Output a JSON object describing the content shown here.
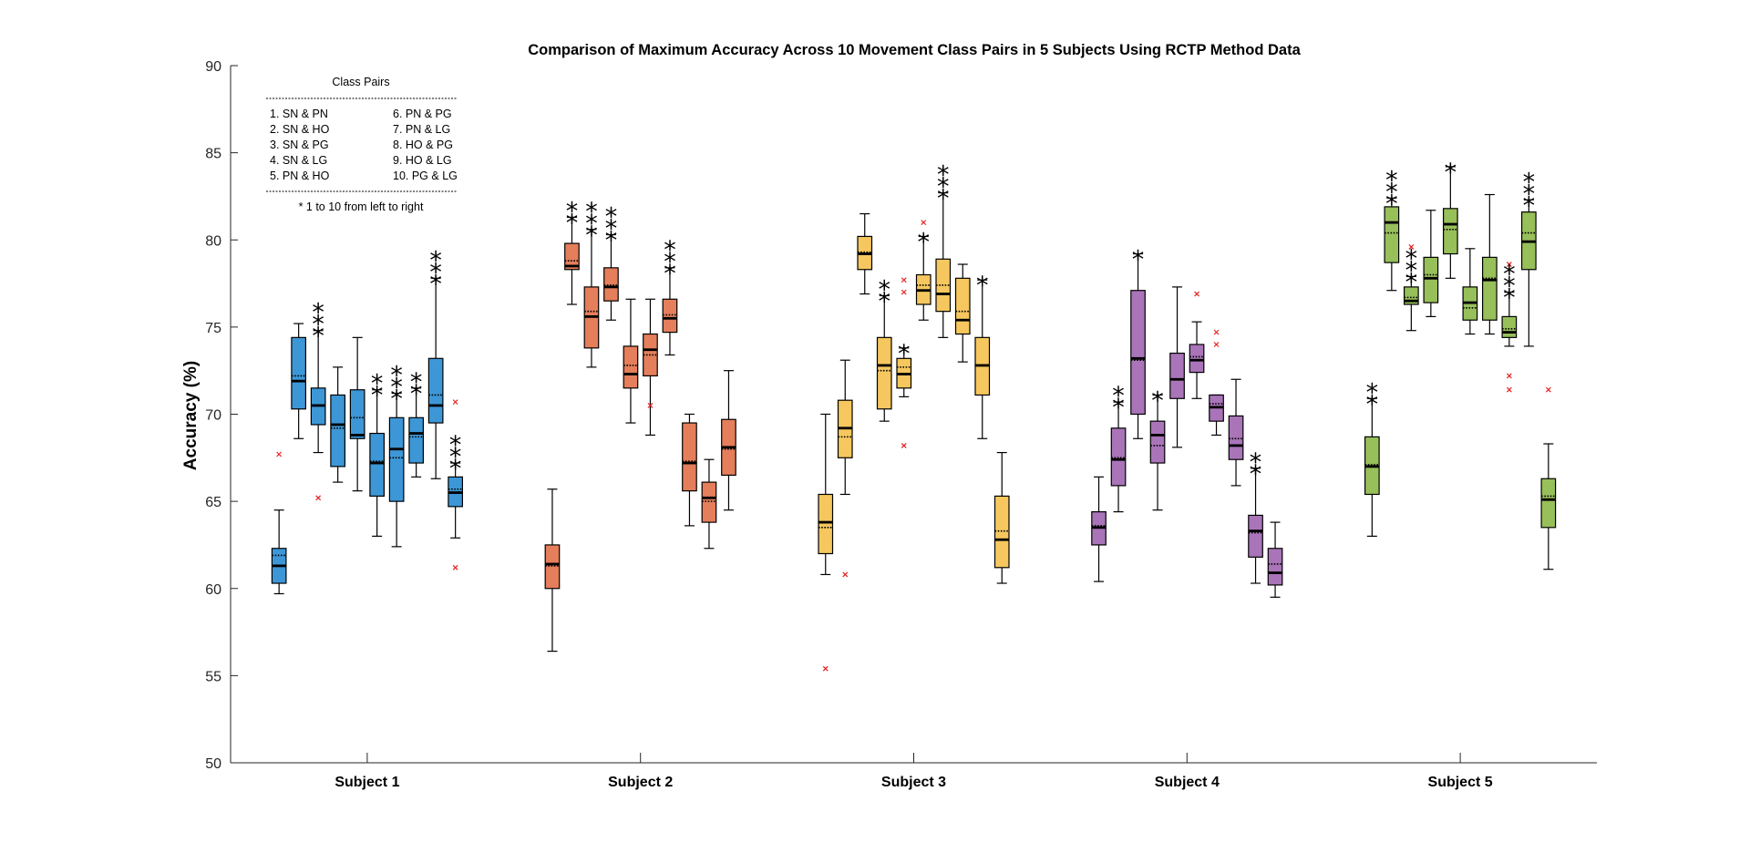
{
  "chart_data": {
    "type": "box",
    "title": "Comparison of Maximum Accuracy Across 10 Movement Class Pairs in 5 Subjects Using RCTP Method Data",
    "ylabel": "Accuracy (%)",
    "xlabel": "",
    "ylim": [
      50,
      90
    ],
    "yticks": [
      50,
      55,
      60,
      65,
      70,
      75,
      80,
      85,
      90
    ],
    "groups": [
      "Subject 1",
      "Subject 2",
      "Subject 3",
      "Subject 4",
      "Subject 5"
    ],
    "colors": [
      "#3d97d6",
      "#e47e5b",
      "#f5c75e",
      "#a974b8",
      "#97bf5a"
    ],
    "legend": {
      "title": "Class Pairs",
      "items": [
        "1. SN & PN",
        "2. SN & HO",
        "3. SN & PG",
        "4. SN & LG",
        "5. PN & HO",
        "6. PN & PG",
        "7. PN & LG",
        "8. HO & PG",
        "9. HO & LG",
        "10. PG & LG"
      ],
      "note": "* 1 to 10 from left to right",
      "placement": "top-left"
    },
    "series": [
      {
        "group": "Subject 1",
        "boxes": [
          {
            "min": 59.7,
            "q1": 60.3,
            "median": 61.3,
            "mean": 61.9,
            "q3": 62.3,
            "max": 64.5,
            "outliers": [
              67.7
            ],
            "stars": ""
          },
          {
            "min": 68.6,
            "q1": 70.3,
            "median": 71.9,
            "mean": 72.2,
            "q3": 74.4,
            "max": 75.2,
            "outliers": [],
            "stars": ""
          },
          {
            "min": 67.8,
            "q1": 69.4,
            "median": 70.5,
            "mean": 70.5,
            "q3": 71.5,
            "max": 74.8,
            "outliers": [
              65.2
            ],
            "stars": "***"
          },
          {
            "min": 66.1,
            "q1": 67.0,
            "median": 69.4,
            "mean": 69.2,
            "q3": 71.1,
            "max": 72.7,
            "outliers": [],
            "stars": ""
          },
          {
            "min": 65.6,
            "q1": 68.6,
            "median": 68.8,
            "mean": 69.8,
            "q3": 71.4,
            "max": 74.4,
            "outliers": [],
            "stars": ""
          },
          {
            "min": 63.0,
            "q1": 65.3,
            "median": 67.2,
            "mean": 67.3,
            "q3": 68.9,
            "max": 71.4,
            "outliers": [],
            "stars": "**"
          },
          {
            "min": 62.4,
            "q1": 65.0,
            "median": 68.0,
            "mean": 67.5,
            "q3": 69.8,
            "max": 71.2,
            "outliers": [],
            "stars": "***"
          },
          {
            "min": 66.4,
            "q1": 67.2,
            "median": 68.9,
            "mean": 68.7,
            "q3": 69.8,
            "max": 71.5,
            "outliers": [],
            "stars": "**"
          },
          {
            "min": 66.3,
            "q1": 69.5,
            "median": 70.5,
            "mean": 71.1,
            "q3": 73.2,
            "max": 77.8,
            "outliers": [],
            "stars": "***"
          },
          {
            "min": 62.9,
            "q1": 64.7,
            "median": 65.5,
            "mean": 65.7,
            "q3": 66.4,
            "max": 67.2,
            "outliers": [
              70.7,
              61.2
            ],
            "stars": "***"
          }
        ]
      },
      {
        "group": "Subject 2",
        "boxes": [
          {
            "min": 56.4,
            "q1": 60.0,
            "median": 61.4,
            "mean": 61.3,
            "q3": 62.5,
            "max": 65.7,
            "outliers": [],
            "stars": ""
          },
          {
            "min": 76.3,
            "q1": 78.3,
            "median": 78.5,
            "mean": 78.8,
            "q3": 79.8,
            "max": 81.3,
            "outliers": [],
            "stars": "**"
          },
          {
            "min": 72.7,
            "q1": 73.8,
            "median": 75.6,
            "mean": 75.9,
            "q3": 77.3,
            "max": 80.6,
            "outliers": [],
            "stars": "***"
          },
          {
            "min": 75.4,
            "q1": 76.5,
            "median": 77.3,
            "mean": 77.4,
            "q3": 78.4,
            "max": 80.3,
            "outliers": [],
            "stars": "***"
          },
          {
            "min": 69.5,
            "q1": 71.5,
            "median": 72.3,
            "mean": 72.8,
            "q3": 73.9,
            "max": 76.6,
            "outliers": [],
            "stars": ""
          },
          {
            "min": 68.8,
            "q1": 72.2,
            "median": 73.7,
            "mean": 73.4,
            "q3": 74.6,
            "max": 76.6,
            "outliers": [
              70.5
            ],
            "stars": ""
          },
          {
            "min": 73.4,
            "q1": 74.7,
            "median": 75.5,
            "mean": 75.7,
            "q3": 76.6,
            "max": 78.4,
            "outliers": [],
            "stars": "***"
          },
          {
            "min": 63.6,
            "q1": 65.6,
            "median": 67.2,
            "mean": 67.3,
            "q3": 69.5,
            "max": 70.0,
            "outliers": [],
            "stars": ""
          },
          {
            "min": 62.3,
            "q1": 63.8,
            "median": 65.2,
            "mean": 65.0,
            "q3": 66.1,
            "max": 67.4,
            "outliers": [],
            "stars": ""
          },
          {
            "min": 64.5,
            "q1": 66.5,
            "median": 68.1,
            "mean": 68.0,
            "q3": 69.7,
            "max": 72.5,
            "outliers": [],
            "stars": ""
          }
        ]
      },
      {
        "group": "Subject 3",
        "boxes": [
          {
            "min": 60.8,
            "q1": 62.0,
            "median": 63.8,
            "mean": 63.5,
            "q3": 65.4,
            "max": 70.0,
            "outliers": [
              55.4
            ],
            "stars": ""
          },
          {
            "min": 65.4,
            "q1": 67.5,
            "median": 69.2,
            "mean": 68.7,
            "q3": 70.8,
            "max": 73.1,
            "outliers": [
              60.8
            ],
            "stars": ""
          },
          {
            "min": 76.9,
            "q1": 78.3,
            "median": 79.2,
            "mean": 79.3,
            "q3": 80.2,
            "max": 81.5,
            "outliers": [],
            "stars": ""
          },
          {
            "min": 69.6,
            "q1": 70.3,
            "median": 72.8,
            "mean": 72.5,
            "q3": 74.4,
            "max": 76.8,
            "outliers": [],
            "stars": "**"
          },
          {
            "min": 71.0,
            "q1": 71.5,
            "median": 72.3,
            "mean": 72.7,
            "q3": 73.2,
            "max": 73.8,
            "outliers": [
              77.7,
              77.0,
              68.2
            ],
            "stars": "*"
          },
          {
            "min": 75.4,
            "q1": 76.3,
            "median": 77.1,
            "mean": 77.4,
            "q3": 78.0,
            "max": 80.2,
            "outliers": [
              81.0
            ],
            "stars": "*"
          },
          {
            "min": 74.4,
            "q1": 75.9,
            "median": 76.9,
            "mean": 77.4,
            "q3": 78.9,
            "max": 82.7,
            "outliers": [],
            "stars": "***"
          },
          {
            "min": 73.0,
            "q1": 74.6,
            "median": 75.4,
            "mean": 75.9,
            "q3": 77.8,
            "max": 78.6,
            "outliers": [],
            "stars": ""
          },
          {
            "min": 68.6,
            "q1": 71.1,
            "median": 72.8,
            "mean": 72.8,
            "q3": 74.4,
            "max": 77.7,
            "outliers": [],
            "stars": "*"
          },
          {
            "min": 60.3,
            "q1": 61.2,
            "median": 62.8,
            "mean": 63.3,
            "q3": 65.3,
            "max": 67.8,
            "outliers": [],
            "stars": ""
          }
        ]
      },
      {
        "group": "Subject 4",
        "boxes": [
          {
            "min": 60.4,
            "q1": 62.5,
            "median": 63.5,
            "mean": 63.6,
            "q3": 64.4,
            "max": 66.4,
            "outliers": [],
            "stars": ""
          },
          {
            "min": 64.4,
            "q1": 65.9,
            "median": 67.4,
            "mean": 67.5,
            "q3": 69.2,
            "max": 70.7,
            "outliers": [],
            "stars": "**"
          },
          {
            "min": 68.6,
            "q1": 70.0,
            "median": 73.2,
            "mean": 73.1,
            "q3": 77.1,
            "max": 79.2,
            "outliers": [],
            "stars": "*"
          },
          {
            "min": 64.5,
            "q1": 67.2,
            "median": 68.8,
            "mean": 68.2,
            "q3": 69.6,
            "max": 71.1,
            "outliers": [],
            "stars": "*"
          },
          {
            "min": 68.1,
            "q1": 70.9,
            "median": 72.0,
            "mean": 72.0,
            "q3": 73.5,
            "max": 77.3,
            "outliers": [],
            "stars": ""
          },
          {
            "min": 70.9,
            "q1": 72.4,
            "median": 73.1,
            "mean": 73.3,
            "q3": 74.0,
            "max": 75.3,
            "outliers": [
              76.9
            ],
            "stars": ""
          },
          {
            "min": 68.8,
            "q1": 69.6,
            "median": 70.4,
            "mean": 70.6,
            "q3": 71.1,
            "max": 71.1,
            "outliers": [
              74.7,
              74.0
            ],
            "stars": ""
          },
          {
            "min": 65.9,
            "q1": 67.4,
            "median": 68.2,
            "mean": 68.6,
            "q3": 69.9,
            "max": 72.0,
            "outliers": [],
            "stars": ""
          },
          {
            "min": 60.3,
            "q1": 61.8,
            "median": 63.3,
            "mean": 63.2,
            "q3": 64.2,
            "max": 66.9,
            "outliers": [],
            "stars": "**"
          },
          {
            "min": 59.5,
            "q1": 60.2,
            "median": 60.9,
            "mean": 61.4,
            "q3": 62.3,
            "max": 63.8,
            "outliers": [],
            "stars": ""
          }
        ]
      },
      {
        "group": "Subject 5",
        "boxes": [
          {
            "min": 63.0,
            "q1": 65.4,
            "median": 67.0,
            "mean": 67.1,
            "q3": 68.7,
            "max": 70.9,
            "outliers": [],
            "stars": "**"
          },
          {
            "min": 77.1,
            "q1": 78.7,
            "median": 81.0,
            "mean": 80.4,
            "q3": 81.9,
            "max": 82.4,
            "outliers": [],
            "stars": "***"
          },
          {
            "min": 74.8,
            "q1": 76.3,
            "median": 76.5,
            "mean": 76.7,
            "q3": 77.3,
            "max": 77.9,
            "outliers": [
              79.6
            ],
            "stars": "***"
          },
          {
            "min": 75.6,
            "q1": 76.4,
            "median": 77.8,
            "mean": 78.0,
            "q3": 79.0,
            "max": 81.7,
            "outliers": [],
            "stars": ""
          },
          {
            "min": 77.8,
            "q1": 79.2,
            "median": 80.9,
            "mean": 80.6,
            "q3": 81.8,
            "max": 84.2,
            "outliers": [],
            "stars": "*"
          },
          {
            "min": 74.6,
            "q1": 75.4,
            "median": 76.4,
            "mean": 76.1,
            "q3": 77.3,
            "max": 79.5,
            "outliers": [],
            "stars": ""
          },
          {
            "min": 74.6,
            "q1": 75.4,
            "median": 77.7,
            "mean": 77.8,
            "q3": 79.0,
            "max": 82.6,
            "outliers": [],
            "stars": ""
          },
          {
            "min": 73.9,
            "q1": 74.4,
            "median": 74.7,
            "mean": 74.9,
            "q3": 75.6,
            "max": 77.0,
            "outliers": [
              78.6,
              72.2,
              71.4
            ],
            "stars": "***"
          },
          {
            "min": 73.9,
            "q1": 78.3,
            "median": 79.9,
            "mean": 80.4,
            "q3": 81.6,
            "max": 82.3,
            "outliers": [],
            "stars": "***"
          },
          {
            "min": 61.1,
            "q1": 63.5,
            "median": 65.1,
            "mean": 65.3,
            "q3": 66.3,
            "max": 68.3,
            "outliers": [
              71.4
            ],
            "stars": ""
          }
        ]
      }
    ]
  }
}
